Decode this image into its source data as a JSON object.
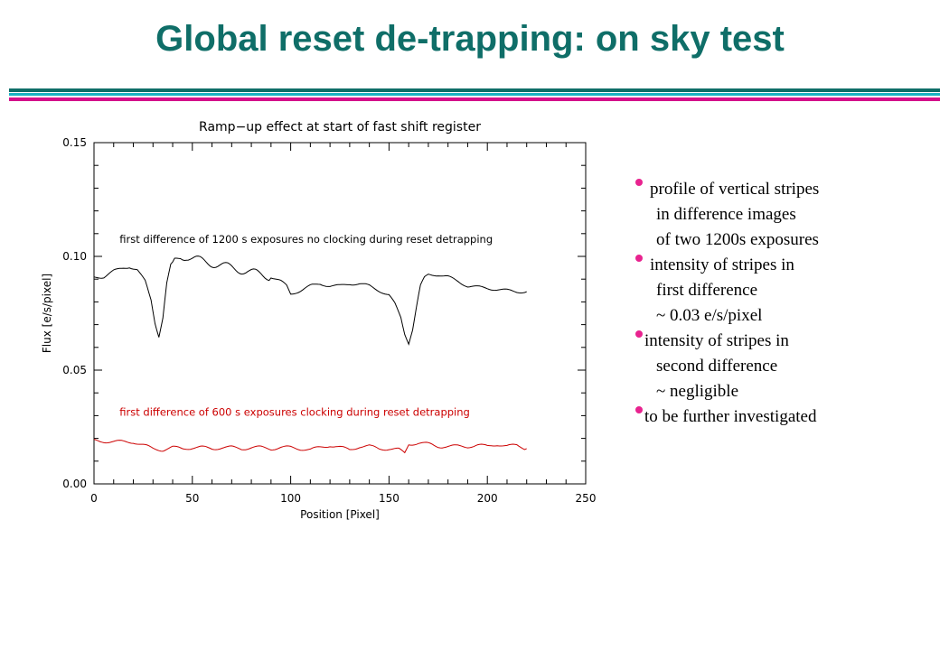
{
  "slide": {
    "title": "Global reset de-trapping: on sky test",
    "title_color": "#0f6e68",
    "rule_colors": [
      "#0f6e68",
      "#19b3c3",
      "#d4108a"
    ],
    "bullet_color": "#e8238f",
    "bullets": [
      {
        "lines": [
          "profile of vertical  stripes",
          "in difference images",
          "of  two 1200s exposures"
        ]
      },
      {
        "lines": [
          "intensity of stripes in",
          "first difference",
          "~ 0.03 e/s/pixel"
        ]
      },
      {
        "lines": [
          "intensity of stripes in",
          "second difference",
          "~ negligible"
        ]
      },
      {
        "lines": [
          "to be further investigated"
        ]
      }
    ]
  },
  "chart_data": {
    "type": "line",
    "title": "Ramp−up effect at start of fast shift register",
    "xlabel": "Position [Pixel]",
    "ylabel": "Flux [e/s/pixel]",
    "xlim": [
      0,
      250
    ],
    "ylim": [
      0,
      0.15
    ],
    "xticks": [
      0,
      50,
      100,
      150,
      200,
      250
    ],
    "xtick_labels": [
      "0",
      "50",
      "100",
      "150",
      "200",
      "250"
    ],
    "yticks": [
      0,
      0.05,
      0.1,
      0.15
    ],
    "ytick_labels": [
      "0.00",
      "0.05",
      "0.10",
      "0.15"
    ],
    "grid": false,
    "annotations": [
      {
        "text": "first difference of 1200 s exposures no clocking during reset detrapping",
        "x": 13,
        "y": 0.106,
        "color": "#000000"
      },
      {
        "text": "first difference of 600 s exposures clocking during reset detrapping",
        "x": 13,
        "y": 0.03,
        "color": "#cc0000"
      }
    ],
    "series": [
      {
        "color": "#000000",
        "x": [
          0,
          5,
          10,
          15,
          18,
          22,
          26,
          29,
          31,
          33,
          35,
          37,
          39,
          41,
          44,
          47,
          50,
          55,
          60,
          65,
          70,
          75,
          80,
          85,
          90,
          95,
          98,
          100,
          105,
          110,
          115,
          120,
          125,
          130,
          135,
          140,
          145,
          150,
          153,
          156,
          158,
          160,
          162,
          164,
          166,
          168,
          170,
          175,
          180,
          185,
          190,
          195,
          200,
          205,
          210,
          215,
          220
        ],
        "y": [
          0.091,
          0.091,
          0.0935,
          0.095,
          0.0955,
          0.094,
          0.089,
          0.081,
          0.071,
          0.065,
          0.073,
          0.088,
          0.096,
          0.098,
          0.1,
          0.1,
          0.099,
          0.098,
          0.097,
          0.096,
          0.095,
          0.094,
          0.093,
          0.092,
          0.091,
          0.089,
          0.087,
          0.0835,
          0.085,
          0.087,
          0.088,
          0.087,
          0.087,
          0.088,
          0.088,
          0.087,
          0.085,
          0.083,
          0.079,
          0.073,
          0.066,
          0.062,
          0.068,
          0.078,
          0.087,
          0.0905,
          0.092,
          0.092,
          0.091,
          0.089,
          0.087,
          0.0865,
          0.086,
          0.0855,
          0.085,
          0.0845,
          0.0845
        ]
      },
      {
        "color": "#cc0000",
        "x": [
          0,
          10,
          20,
          25,
          30,
          35,
          40,
          45,
          50,
          55,
          60,
          65,
          70,
          75,
          80,
          85,
          90,
          95,
          100,
          105,
          110,
          115,
          120,
          125,
          130,
          135,
          140,
          145,
          150,
          155,
          158,
          160,
          165,
          170,
          175,
          180,
          185,
          190,
          195,
          200,
          205,
          210,
          215,
          220
        ],
        "y": [
          0.019,
          0.0185,
          0.0185,
          0.017,
          0.0155,
          0.015,
          0.016,
          0.0155,
          0.016,
          0.016,
          0.0155,
          0.016,
          0.016,
          0.0155,
          0.016,
          0.016,
          0.0155,
          0.016,
          0.016,
          0.0155,
          0.015,
          0.016,
          0.017,
          0.016,
          0.015,
          0.0165,
          0.0165,
          0.0155,
          0.0155,
          0.015,
          0.0135,
          0.0175,
          0.018,
          0.0175,
          0.0165,
          0.0165,
          0.0165,
          0.0165,
          0.017,
          0.0165,
          0.0175,
          0.0165,
          0.017,
          0.0155
        ]
      }
    ]
  }
}
